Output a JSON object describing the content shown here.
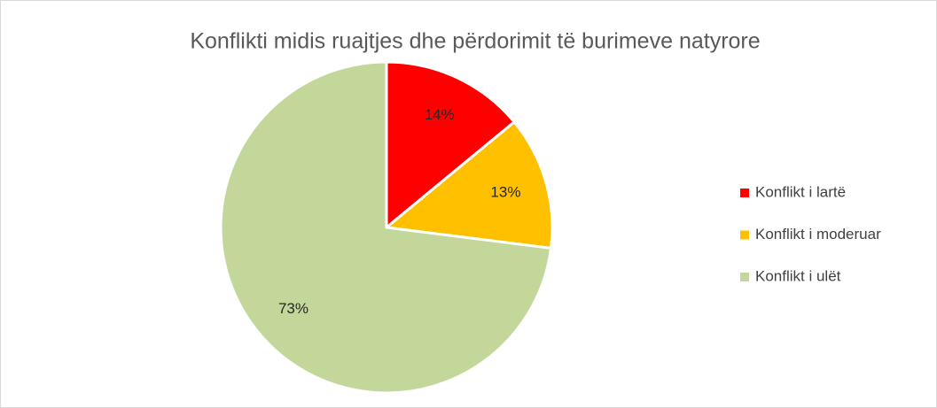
{
  "chart_data": {
    "type": "pie",
    "title": "Konflikti midis ruajtjes dhe përdorimit të burimeve natyrore",
    "categories": [
      "Konflikt i lartë",
      "Konflikt i moderuar",
      "Konflikt i ulët"
    ],
    "values": [
      14,
      13,
      73
    ],
    "value_labels": [
      "14%",
      "13%",
      "73%"
    ],
    "colors": [
      "#ff0000",
      "#ffc000",
      "#c4d79b"
    ],
    "legend": "right"
  }
}
